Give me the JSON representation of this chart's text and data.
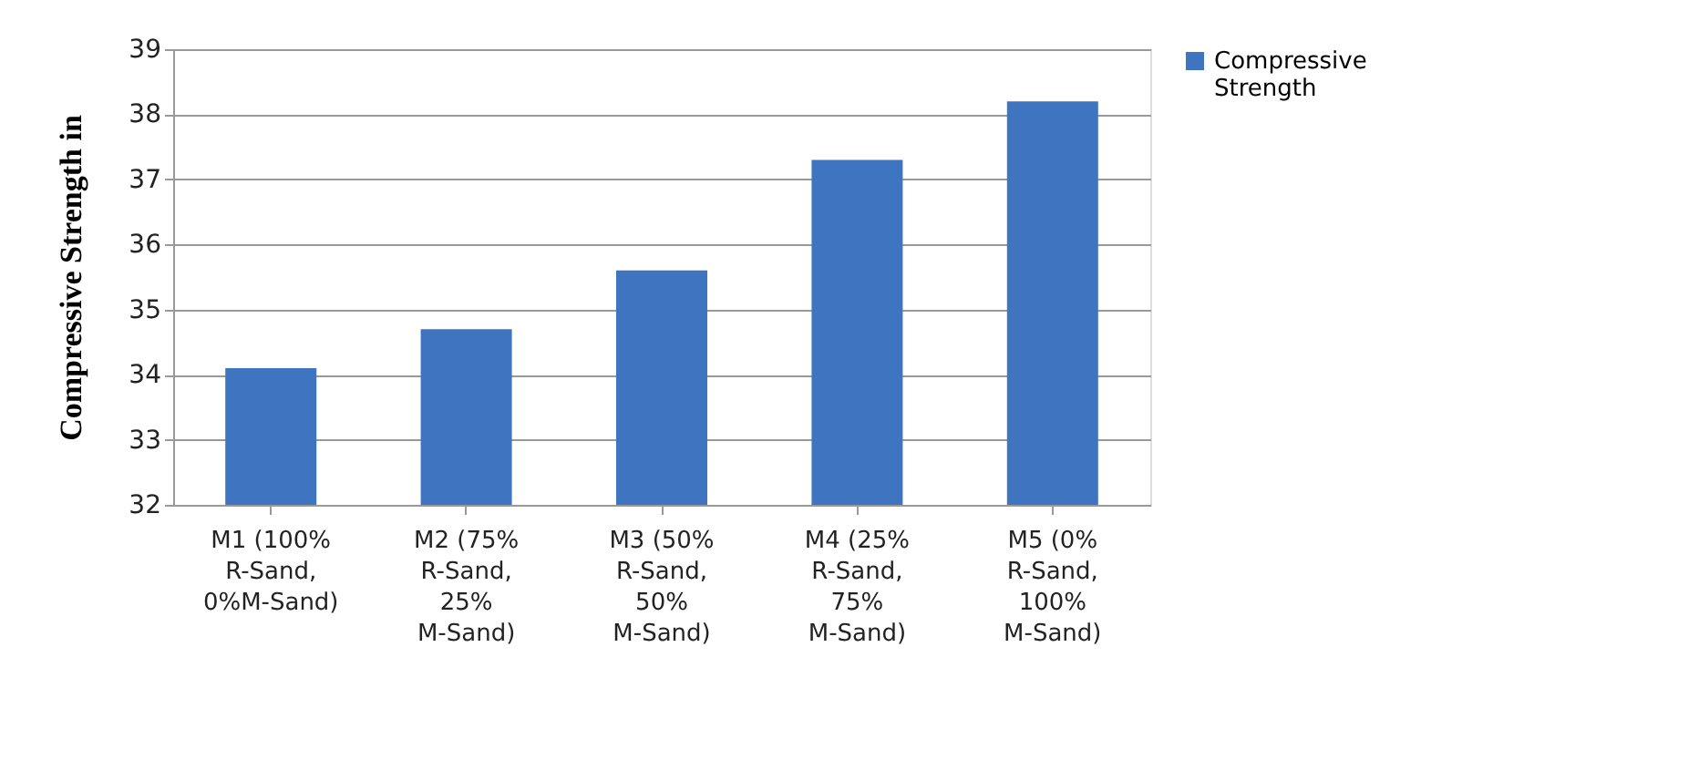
{
  "chart_data": {
    "type": "bar",
    "ylabel": "Compressive Strength in",
    "categories": [
      "M1 (100% R-Sand, 0%M-Sand)",
      "M2 (75% R-Sand, 25% M-Sand)",
      "M3 (50% R-Sand, 50% M-Sand)",
      "M4 (25% R-Sand, 75% M-Sand)",
      "M5 (0% R-Sand, 100% M-Sand)"
    ],
    "series": [
      {
        "name": "Compressive Strength",
        "color": "#3f75c0",
        "values": [
          34.1,
          34.7,
          35.6,
          37.3,
          38.2
        ]
      }
    ],
    "ylim": [
      32,
      39
    ],
    "yticks": [
      32,
      33,
      34,
      35,
      36,
      37,
      38,
      39
    ],
    "grid": "y",
    "legend": "right"
  }
}
